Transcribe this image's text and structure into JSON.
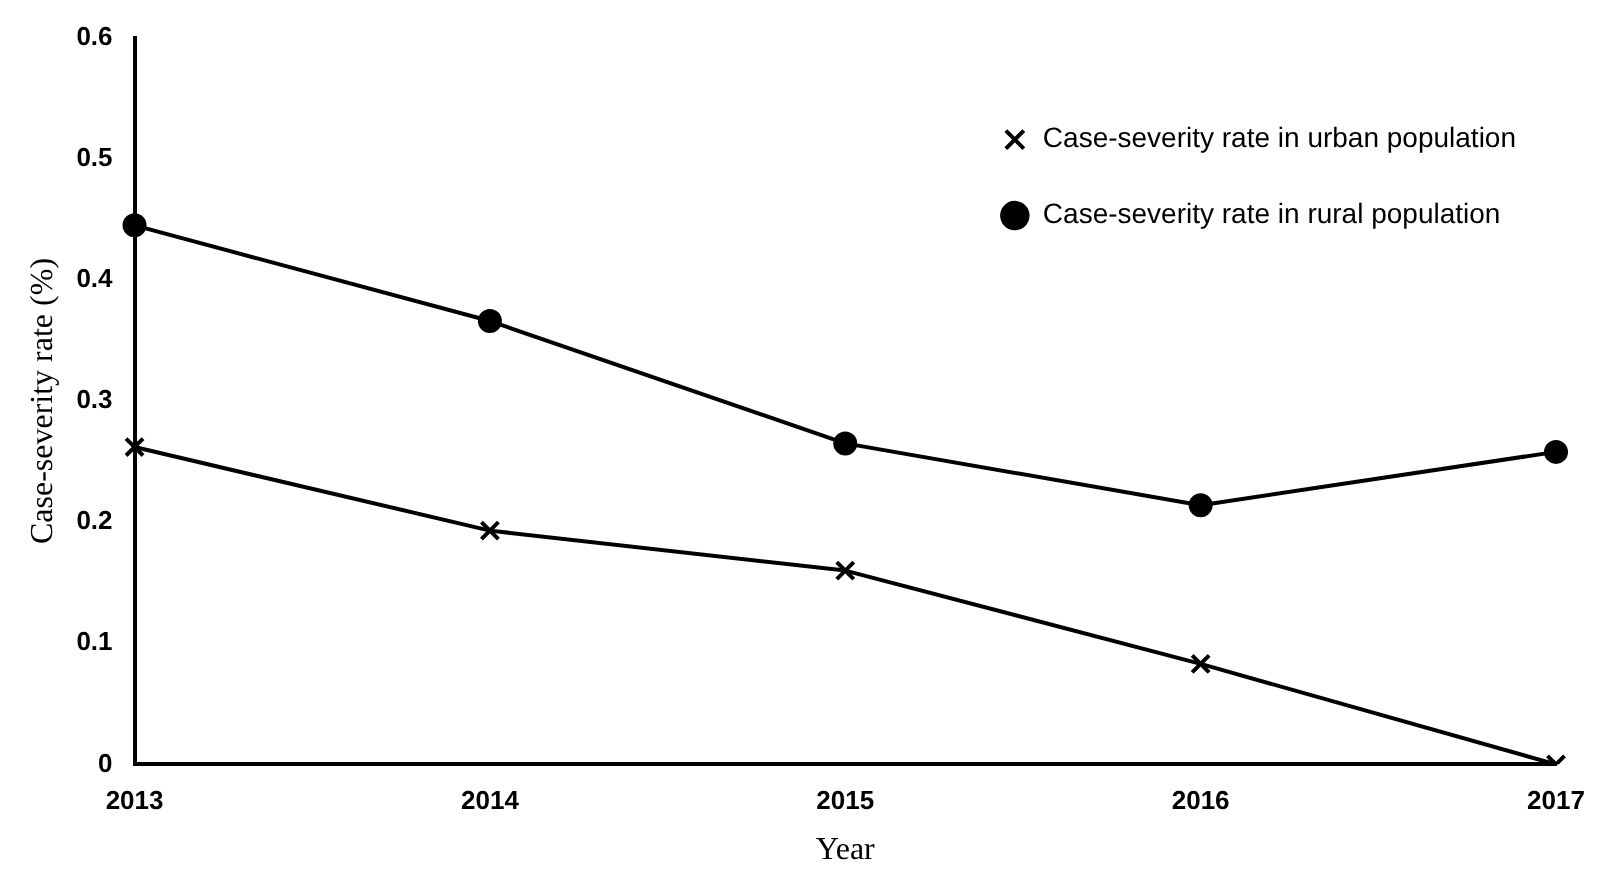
{
  "chart_data": {
    "type": "line",
    "xlabel": "Year",
    "ylabel": "Case-severity rate (%)",
    "categories": [
      "2013",
      "2014",
      "2015",
      "2016",
      "2017"
    ],
    "series": [
      {
        "name": "Case-severity rate in urban population",
        "color": "#000000",
        "marker": "cross",
        "values": [
          0.262,
          0.193,
          0.16,
          0.083,
          0
        ]
      },
      {
        "name": "Case-severity rate in rural population",
        "color": "#000000",
        "marker": "circle",
        "values": [
          0.445,
          0.366,
          0.265,
          0.214,
          0.258
        ]
      }
    ],
    "ylim": [
      0,
      0.6
    ],
    "yticks": [
      0,
      0.1,
      0.2,
      0.3,
      0.4,
      0.5,
      0.6
    ],
    "grid": false,
    "legend": "top right",
    "line_style": "solid"
  }
}
